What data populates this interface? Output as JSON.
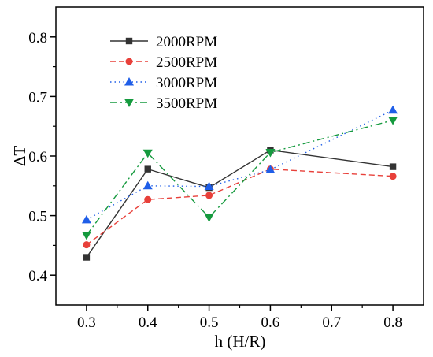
{
  "chart_data": {
    "type": "line",
    "title": "",
    "xlabel": "h (H/R)",
    "ylabel": "ΔT",
    "xlim": [
      0.25,
      0.85
    ],
    "ylim": [
      0.35,
      0.85
    ],
    "x_ticks": [
      0.3,
      0.4,
      0.5,
      0.6,
      0.7,
      0.8
    ],
    "x_tick_labels": [
      "0.3",
      "0.4",
      "0.5",
      "0.6",
      "0.7",
      "0.8"
    ],
    "y_ticks": [
      0.4,
      0.5,
      0.6,
      0.7,
      0.8
    ],
    "y_tick_labels": [
      "0.4",
      "0.5",
      "0.6",
      "0.7",
      "0.8"
    ],
    "grid": false,
    "legend_position": "top-left",
    "x": [
      0.3,
      0.4,
      0.5,
      0.6,
      0.8
    ],
    "series": [
      {
        "name": "2000RPM",
        "values": [
          0.43,
          0.578,
          0.547,
          0.61,
          0.582
        ],
        "color": "#333333",
        "marker": "square",
        "line_style": "solid"
      },
      {
        "name": "2500RPM",
        "values": [
          0.451,
          0.527,
          0.534,
          0.578,
          0.566
        ],
        "color": "#e8403a",
        "marker": "circle",
        "line_style": "dashed"
      },
      {
        "name": "3000RPM",
        "values": [
          0.493,
          0.55,
          0.549,
          0.577,
          0.677
        ],
        "color": "#1f5ee8",
        "marker": "triangle-up",
        "line_style": "dotted"
      },
      {
        "name": "3500RPM",
        "values": [
          0.467,
          0.605,
          0.497,
          0.606,
          0.66
        ],
        "color": "#159a3e",
        "marker": "triangle-down",
        "line_style": "dashdot"
      }
    ]
  }
}
